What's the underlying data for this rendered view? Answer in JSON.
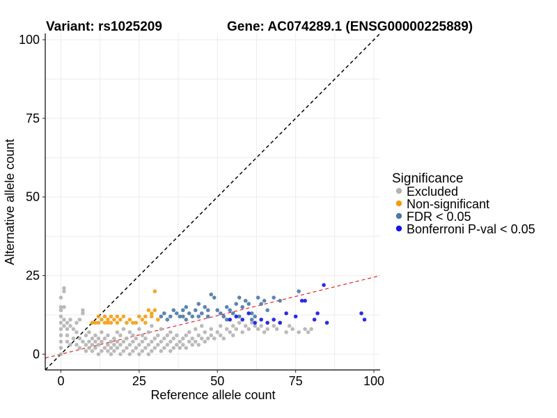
{
  "chart_data": {
    "type": "scatter",
    "title_left": "Variant: rs1025209",
    "title_right": "Gene: AC074289.1 (ENSG00000225889)",
    "xlabel": "Reference allele count",
    "ylabel": "Alternative allele count",
    "xlim": [
      -5,
      102
    ],
    "ylim": [
      -5,
      102
    ],
    "xticks": [
      0,
      25,
      50,
      75,
      100
    ],
    "yticks": [
      0,
      25,
      50,
      75,
      100
    ],
    "grid": true,
    "reference_lines": [
      {
        "name": "identity",
        "slope": 1.0,
        "intercept": 0,
        "color": "#000000",
        "style": "dashed"
      },
      {
        "name": "fit",
        "slope": 0.245,
        "intercept": 0,
        "color": "#e8202a",
        "style": "dashed"
      }
    ],
    "legend": {
      "title": "Significance",
      "placement": "right",
      "items": [
        {
          "label": "Excluded",
          "color": "#b3b3b3"
        },
        {
          "label": "Non-significant",
          "color": "#f39c12"
        },
        {
          "label": "FDR < 0.05",
          "color": "#4a78a8"
        },
        {
          "label": "Bonferroni P-val < 0.05",
          "color": "#1515e8"
        }
      ]
    },
    "series": [
      {
        "name": "Excluded",
        "color": "#b3b3b3",
        "points": [
          [
            0,
            14
          ],
          [
            0,
            15
          ],
          [
            0,
            18
          ],
          [
            1,
            21
          ],
          [
            1,
            20
          ],
          [
            1,
            15
          ],
          [
            0,
            12
          ],
          [
            0,
            10
          ],
          [
            0,
            8
          ],
          [
            0,
            6
          ],
          [
            0,
            4
          ],
          [
            0,
            2
          ],
          [
            0,
            0
          ],
          [
            1,
            11
          ],
          [
            1,
            9
          ],
          [
            2,
            10
          ],
          [
            2,
            8
          ],
          [
            2,
            6
          ],
          [
            3,
            11
          ],
          [
            3,
            9
          ],
          [
            4,
            8
          ],
          [
            5,
            10
          ],
          [
            5,
            7
          ],
          [
            6,
            11
          ],
          [
            7,
            13
          ],
          [
            7,
            14
          ],
          [
            2,
            4
          ],
          [
            3,
            3
          ],
          [
            4,
            5
          ],
          [
            5,
            3
          ],
          [
            6,
            2
          ],
          [
            6,
            5
          ],
          [
            7,
            4
          ],
          [
            8,
            1
          ],
          [
            8,
            3
          ],
          [
            8,
            6
          ],
          [
            9,
            2
          ],
          [
            9,
            4
          ],
          [
            9,
            7
          ],
          [
            10,
            1
          ],
          [
            10,
            3
          ],
          [
            10,
            5
          ],
          [
            11,
            2
          ],
          [
            11,
            4
          ],
          [
            11,
            6
          ],
          [
            12,
            0
          ],
          [
            12,
            3
          ],
          [
            12,
            5
          ],
          [
            13,
            1
          ],
          [
            13,
            4
          ],
          [
            13,
            7
          ],
          [
            14,
            2
          ],
          [
            14,
            5
          ],
          [
            15,
            1
          ],
          [
            15,
            3
          ],
          [
            15,
            6
          ],
          [
            16,
            0
          ],
          [
            16,
            2
          ],
          [
            16,
            4
          ],
          [
            17,
            1
          ],
          [
            17,
            3
          ],
          [
            17,
            5
          ],
          [
            18,
            2
          ],
          [
            18,
            4
          ],
          [
            18,
            7
          ],
          [
            19,
            0
          ],
          [
            19,
            3
          ],
          [
            19,
            6
          ],
          [
            20,
            1
          ],
          [
            20,
            4
          ],
          [
            20,
            8
          ],
          [
            21,
            2
          ],
          [
            21,
            5
          ],
          [
            22,
            0
          ],
          [
            22,
            3
          ],
          [
            22,
            7
          ],
          [
            23,
            1
          ],
          [
            23,
            4
          ],
          [
            23,
            6
          ],
          [
            24,
            2
          ],
          [
            24,
            5
          ],
          [
            25,
            0
          ],
          [
            25,
            3
          ],
          [
            25,
            8
          ],
          [
            26,
            1
          ],
          [
            26,
            4
          ],
          [
            26,
            6
          ],
          [
            27,
            2
          ],
          [
            27,
            5
          ],
          [
            28,
            0
          ],
          [
            28,
            3
          ],
          [
            28,
            7
          ],
          [
            29,
            1
          ],
          [
            29,
            4
          ],
          [
            29,
            9
          ],
          [
            30,
            2
          ],
          [
            30,
            5
          ],
          [
            31,
            3
          ],
          [
            31,
            6
          ],
          [
            32,
            1
          ],
          [
            32,
            4
          ],
          [
            32,
            8
          ],
          [
            33,
            2
          ],
          [
            33,
            5
          ],
          [
            34,
            3
          ],
          [
            34,
            6
          ],
          [
            35,
            1
          ],
          [
            35,
            4
          ],
          [
            35,
            7
          ],
          [
            36,
            2
          ],
          [
            36,
            5
          ],
          [
            37,
            3
          ],
          [
            37,
            6
          ],
          [
            38,
            2
          ],
          [
            38,
            4
          ],
          [
            39,
            3
          ],
          [
            39,
            5
          ],
          [
            40,
            2
          ],
          [
            40,
            6
          ],
          [
            41,
            4
          ],
          [
            41,
            7
          ],
          [
            42,
            3
          ],
          [
            42,
            5
          ],
          [
            43,
            4
          ],
          [
            43,
            8
          ],
          [
            44,
            3
          ],
          [
            44,
            6
          ],
          [
            45,
            5
          ],
          [
            45,
            9
          ],
          [
            46,
            4
          ],
          [
            46,
            7
          ],
          [
            47,
            5
          ],
          [
            48,
            6
          ],
          [
            48,
            8
          ],
          [
            49,
            5
          ],
          [
            50,
            7
          ],
          [
            51,
            6
          ],
          [
            51,
            9
          ],
          [
            52,
            5
          ],
          [
            53,
            8
          ],
          [
            54,
            7
          ],
          [
            55,
            6
          ],
          [
            55,
            9
          ],
          [
            56,
            8
          ],
          [
            57,
            10
          ],
          [
            58,
            7
          ],
          [
            59,
            9
          ],
          [
            60,
            8
          ],
          [
            61,
            10
          ],
          [
            62,
            9
          ],
          [
            63,
            8
          ],
          [
            64,
            9
          ],
          [
            65,
            7
          ],
          [
            66,
            8
          ],
          [
            68,
            9
          ],
          [
            69,
            8
          ],
          [
            70,
            10
          ],
          [
            72,
            7
          ],
          [
            73,
            9
          ],
          [
            74,
            8
          ],
          [
            76,
            7
          ],
          [
            78,
            8
          ],
          [
            79,
            7
          ],
          [
            80,
            8
          ]
        ]
      },
      {
        "name": "Non-significant",
        "color": "#f39c12",
        "points": [
          [
            10,
            10
          ],
          [
            11,
            10
          ],
          [
            12,
            10
          ],
          [
            12,
            12
          ],
          [
            13,
            11
          ],
          [
            14,
            10
          ],
          [
            14,
            12
          ],
          [
            15,
            10
          ],
          [
            15,
            11
          ],
          [
            16,
            10
          ],
          [
            16,
            12
          ],
          [
            17,
            11
          ],
          [
            18,
            10
          ],
          [
            18,
            12
          ],
          [
            19,
            11
          ],
          [
            20,
            12
          ],
          [
            21,
            10
          ],
          [
            22,
            11
          ],
          [
            23,
            10
          ],
          [
            24,
            10
          ],
          [
            25,
            12
          ],
          [
            26,
            11
          ],
          [
            27,
            10
          ],
          [
            27,
            12
          ],
          [
            28,
            14
          ],
          [
            29,
            12
          ],
          [
            29,
            13
          ],
          [
            30,
            20
          ],
          [
            30,
            14
          ],
          [
            31,
            11
          ]
        ]
      },
      {
        "name": "FDR < 0.05",
        "color": "#4a78a8",
        "points": [
          [
            32,
            12
          ],
          [
            33,
            13
          ],
          [
            34,
            11
          ],
          [
            35,
            12
          ],
          [
            36,
            14
          ],
          [
            37,
            13
          ],
          [
            38,
            12
          ],
          [
            39,
            14
          ],
          [
            40,
            11
          ],
          [
            40,
            15
          ],
          [
            41,
            13
          ],
          [
            42,
            12
          ],
          [
            43,
            14
          ],
          [
            44,
            16
          ],
          [
            45,
            13
          ],
          [
            46,
            15
          ],
          [
            47,
            12
          ],
          [
            48,
            19
          ],
          [
            49,
            18
          ],
          [
            50,
            14
          ],
          [
            51,
            13
          ],
          [
            52,
            12
          ],
          [
            53,
            15
          ],
          [
            54,
            14
          ],
          [
            55,
            13
          ],
          [
            56,
            16
          ],
          [
            57,
            18
          ],
          [
            58,
            15
          ],
          [
            59,
            17
          ],
          [
            60,
            16
          ],
          [
            61,
            13
          ],
          [
            62,
            12
          ],
          [
            63,
            18
          ],
          [
            64,
            16
          ],
          [
            66,
            14
          ],
          [
            68,
            18
          ],
          [
            70,
            17
          ],
          [
            76,
            20
          ],
          [
            39,
            12
          ],
          [
            44,
            12
          ],
          [
            47,
            14
          ],
          [
            53,
            11
          ],
          [
            57,
            12
          ],
          [
            61,
            11
          ],
          [
            65,
            17
          ]
        ]
      },
      {
        "name": "Bonferroni P-val < 0.05",
        "color": "#1515e8",
        "points": [
          [
            54,
            11
          ],
          [
            56,
            12
          ],
          [
            58,
            11
          ],
          [
            60,
            13
          ],
          [
            62,
            10
          ],
          [
            64,
            11
          ],
          [
            66,
            10
          ],
          [
            68,
            11
          ],
          [
            70,
            10
          ],
          [
            72,
            13
          ],
          [
            75,
            12
          ],
          [
            77,
            17
          ],
          [
            78,
            17
          ],
          [
            81,
            11
          ],
          [
            82,
            13
          ],
          [
            84,
            22
          ],
          [
            85,
            10
          ],
          [
            96,
            13
          ],
          [
            97,
            11
          ]
        ]
      }
    ]
  }
}
